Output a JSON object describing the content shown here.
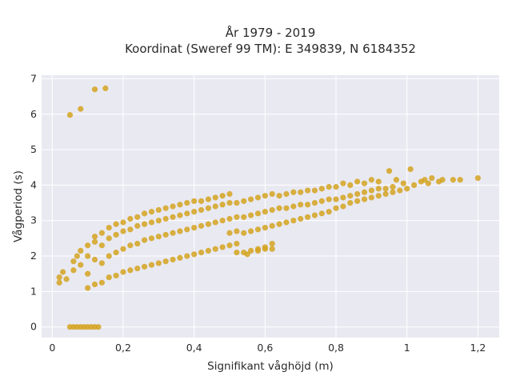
{
  "chart_data": {
    "type": "scatter",
    "title_lines": [
      "År 1979 - 2019",
      "Koordinat (Sweref 99 TM): E 349839, N 6184352"
    ],
    "xlabel": "Signifikant våghöjd (m)",
    "ylabel": "Vågperiod (s)",
    "xlim": [
      -0.03,
      1.26
    ],
    "ylim": [
      -0.3,
      7.1
    ],
    "x_ticks": [
      0,
      0.2,
      0.4,
      0.6,
      0.8,
      1,
      1.2
    ],
    "x_tick_labels": [
      "0",
      "0,2",
      "0,4",
      "0,6",
      "0,8",
      "1",
      "1,2"
    ],
    "y_ticks": [
      0,
      1,
      2,
      3,
      4,
      5,
      6,
      7
    ],
    "y_tick_labels": [
      "0",
      "1",
      "2",
      "3",
      "4",
      "5",
      "6",
      "7"
    ],
    "grid": true,
    "marker_color": "#d4a320",
    "plot_background": "#e9e9f2",
    "points": [
      [
        0.05,
        5.98
      ],
      [
        0.08,
        6.15
      ],
      [
        0.12,
        6.7
      ],
      [
        0.15,
        6.73
      ],
      [
        0.05,
        0
      ],
      [
        0.06,
        0
      ],
      [
        0.07,
        0
      ],
      [
        0.08,
        0
      ],
      [
        0.09,
        0
      ],
      [
        0.1,
        0
      ],
      [
        0.11,
        0
      ],
      [
        0.12,
        0
      ],
      [
        0.13,
        0
      ],
      [
        0.02,
        1.25
      ],
      [
        0.02,
        1.4
      ],
      [
        0.03,
        1.55
      ],
      [
        0.04,
        1.35
      ],
      [
        0.06,
        1.6
      ],
      [
        0.06,
        1.85
      ],
      [
        0.07,
        2.0
      ],
      [
        0.08,
        1.75
      ],
      [
        0.08,
        2.15
      ],
      [
        0.1,
        1.1
      ],
      [
        0.1,
        1.5
      ],
      [
        0.1,
        2.0
      ],
      [
        0.1,
        2.3
      ],
      [
        0.12,
        1.2
      ],
      [
        0.12,
        1.9
      ],
      [
        0.12,
        2.4
      ],
      [
        0.12,
        2.55
      ],
      [
        0.14,
        1.25
      ],
      [
        0.14,
        1.8
      ],
      [
        0.14,
        2.3
      ],
      [
        0.14,
        2.65
      ],
      [
        0.16,
        1.4
      ],
      [
        0.16,
        2.0
      ],
      [
        0.16,
        2.5
      ],
      [
        0.16,
        2.8
      ],
      [
        0.18,
        1.45
      ],
      [
        0.18,
        2.1
      ],
      [
        0.18,
        2.6
      ],
      [
        0.18,
        2.9
      ],
      [
        0.2,
        1.55
      ],
      [
        0.2,
        2.2
      ],
      [
        0.2,
        2.7
      ],
      [
        0.2,
        2.95
      ],
      [
        0.22,
        1.6
      ],
      [
        0.22,
        2.3
      ],
      [
        0.22,
        2.75
      ],
      [
        0.22,
        3.05
      ],
      [
        0.24,
        1.65
      ],
      [
        0.24,
        2.35
      ],
      [
        0.24,
        2.85
      ],
      [
        0.24,
        3.1
      ],
      [
        0.26,
        1.7
      ],
      [
        0.26,
        2.45
      ],
      [
        0.26,
        2.9
      ],
      [
        0.26,
        3.2
      ],
      [
        0.28,
        1.75
      ],
      [
        0.28,
        2.5
      ],
      [
        0.28,
        2.95
      ],
      [
        0.28,
        3.25
      ],
      [
        0.3,
        1.8
      ],
      [
        0.3,
        2.55
      ],
      [
        0.3,
        3.0
      ],
      [
        0.3,
        3.3
      ],
      [
        0.32,
        1.85
      ],
      [
        0.32,
        2.6
      ],
      [
        0.32,
        3.05
      ],
      [
        0.32,
        3.35
      ],
      [
        0.34,
        1.9
      ],
      [
        0.34,
        2.65
      ],
      [
        0.34,
        3.1
      ],
      [
        0.34,
        3.4
      ],
      [
        0.36,
        1.95
      ],
      [
        0.36,
        2.7
      ],
      [
        0.36,
        3.15
      ],
      [
        0.36,
        3.45
      ],
      [
        0.38,
        2.0
      ],
      [
        0.38,
        2.75
      ],
      [
        0.38,
        3.2
      ],
      [
        0.38,
        3.5
      ],
      [
        0.4,
        2.05
      ],
      [
        0.4,
        2.8
      ],
      [
        0.4,
        3.25
      ],
      [
        0.4,
        3.55
      ],
      [
        0.42,
        2.1
      ],
      [
        0.42,
        2.85
      ],
      [
        0.42,
        3.3
      ],
      [
        0.42,
        3.55
      ],
      [
        0.44,
        2.15
      ],
      [
        0.44,
        2.9
      ],
      [
        0.44,
        3.35
      ],
      [
        0.44,
        3.6
      ],
      [
        0.46,
        2.2
      ],
      [
        0.46,
        2.95
      ],
      [
        0.46,
        3.4
      ],
      [
        0.46,
        3.65
      ],
      [
        0.48,
        2.25
      ],
      [
        0.48,
        3.0
      ],
      [
        0.48,
        3.45
      ],
      [
        0.48,
        3.7
      ],
      [
        0.5,
        2.3
      ],
      [
        0.5,
        2.65
      ],
      [
        0.5,
        3.05
      ],
      [
        0.5,
        3.5
      ],
      [
        0.5,
        3.75
      ],
      [
        0.52,
        2.35
      ],
      [
        0.52,
        2.7
      ],
      [
        0.52,
        3.1
      ],
      [
        0.52,
        3.5
      ],
      [
        0.54,
        2.1
      ],
      [
        0.54,
        2.65
      ],
      [
        0.54,
        3.1
      ],
      [
        0.54,
        3.55
      ],
      [
        0.56,
        2.15
      ],
      [
        0.56,
        2.7
      ],
      [
        0.56,
        3.15
      ],
      [
        0.56,
        3.6
      ],
      [
        0.58,
        2.2
      ],
      [
        0.58,
        2.75
      ],
      [
        0.58,
        3.2
      ],
      [
        0.58,
        3.65
      ],
      [
        0.6,
        2.25
      ],
      [
        0.6,
        2.8
      ],
      [
        0.6,
        3.25
      ],
      [
        0.6,
        3.7
      ],
      [
        0.62,
        2.35
      ],
      [
        0.62,
        2.85
      ],
      [
        0.62,
        3.3
      ],
      [
        0.62,
        3.75
      ],
      [
        0.64,
        2.9
      ],
      [
        0.64,
        3.35
      ],
      [
        0.64,
        3.7
      ],
      [
        0.66,
        2.95
      ],
      [
        0.66,
        3.35
      ],
      [
        0.66,
        3.75
      ],
      [
        0.68,
        3.0
      ],
      [
        0.68,
        3.4
      ],
      [
        0.68,
        3.8
      ],
      [
        0.7,
        3.05
      ],
      [
        0.7,
        3.45
      ],
      [
        0.7,
        3.8
      ],
      [
        0.72,
        3.1
      ],
      [
        0.72,
        3.45
      ],
      [
        0.72,
        3.85
      ],
      [
        0.74,
        3.15
      ],
      [
        0.74,
        3.5
      ],
      [
        0.74,
        3.85
      ],
      [
        0.76,
        3.2
      ],
      [
        0.76,
        3.55
      ],
      [
        0.76,
        3.9
      ],
      [
        0.78,
        3.25
      ],
      [
        0.78,
        3.6
      ],
      [
        0.78,
        3.95
      ],
      [
        0.8,
        3.35
      ],
      [
        0.8,
        3.6
      ],
      [
        0.8,
        3.95
      ],
      [
        0.82,
        3.4
      ],
      [
        0.82,
        3.65
      ],
      [
        0.82,
        4.05
      ],
      [
        0.84,
        3.5
      ],
      [
        0.84,
        3.7
      ],
      [
        0.84,
        4.0
      ],
      [
        0.86,
        3.55
      ],
      [
        0.86,
        3.75
      ],
      [
        0.86,
        4.1
      ],
      [
        0.88,
        3.6
      ],
      [
        0.88,
        3.8
      ],
      [
        0.88,
        4.05
      ],
      [
        0.9,
        3.65
      ],
      [
        0.9,
        3.85
      ],
      [
        0.9,
        4.15
      ],
      [
        0.92,
        3.7
      ],
      [
        0.92,
        3.9
      ],
      [
        0.92,
        4.1
      ],
      [
        0.94,
        3.75
      ],
      [
        0.94,
        3.9
      ],
      [
        0.95,
        4.4
      ],
      [
        0.96,
        3.8
      ],
      [
        0.96,
        3.95
      ],
      [
        0.97,
        4.15
      ],
      [
        0.98,
        3.85
      ],
      [
        0.99,
        4.05
      ],
      [
        1.01,
        4.45
      ],
      [
        1.0,
        3.9
      ],
      [
        1.02,
        4.0
      ],
      [
        1.04,
        4.1
      ],
      [
        1.05,
        4.15
      ],
      [
        1.06,
        4.05
      ],
      [
        1.07,
        4.2
      ],
      [
        1.09,
        4.1
      ],
      [
        1.1,
        4.15
      ],
      [
        1.13,
        4.15
      ],
      [
        1.15,
        4.15
      ],
      [
        1.2,
        4.2
      ],
      [
        0.52,
        2.1
      ],
      [
        0.55,
        2.05
      ],
      [
        0.58,
        2.15
      ],
      [
        0.6,
        2.2
      ],
      [
        0.62,
        2.2
      ]
    ]
  }
}
